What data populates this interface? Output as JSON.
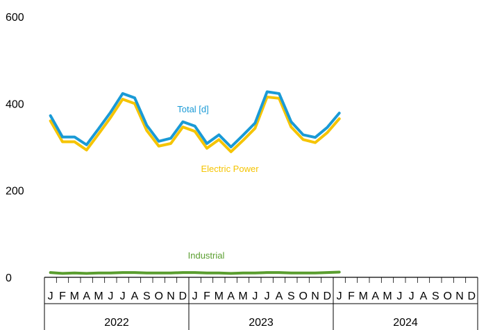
{
  "chart_data": {
    "type": "line",
    "title": "",
    "xlabel": "",
    "ylabel": "",
    "ylim": [
      0,
      600
    ],
    "yticks": [
      0,
      200,
      400,
      600
    ],
    "x_range": [
      "2022-01",
      "2024-12"
    ],
    "month_labels": [
      "J",
      "F",
      "M",
      "A",
      "M",
      "J",
      "J",
      "A",
      "S",
      "O",
      "N",
      "D"
    ],
    "years": [
      "2022",
      "2023",
      "2024"
    ],
    "grid": false,
    "legend": "inline labels",
    "series": [
      {
        "name": "Total [d]",
        "color": "#1a9ad6",
        "values": [
          372,
          323,
          323,
          305,
          342,
          380,
          423,
          413,
          350,
          313,
          320,
          358,
          348,
          308,
          328,
          300,
          327,
          355,
          427,
          423,
          358,
          328,
          322,
          345,
          378
        ]
      },
      {
        "name": "Electric Power",
        "color": "#f5c400",
        "values": [
          360,
          312,
          312,
          293,
          330,
          368,
          410,
          400,
          338,
          302,
          308,
          346,
          336,
          297,
          317,
          289,
          315,
          343,
          415,
          412,
          346,
          317,
          310,
          333,
          365
        ]
      },
      {
        "name": "Industrial",
        "color": "#5a9e2f",
        "values": [
          11,
          9,
          10,
          9,
          10,
          10,
          11,
          11,
          10,
          10,
          10,
          11,
          11,
          10,
          10,
          9,
          10,
          10,
          11,
          11,
          10,
          10,
          10,
          11,
          12
        ]
      }
    ]
  }
}
